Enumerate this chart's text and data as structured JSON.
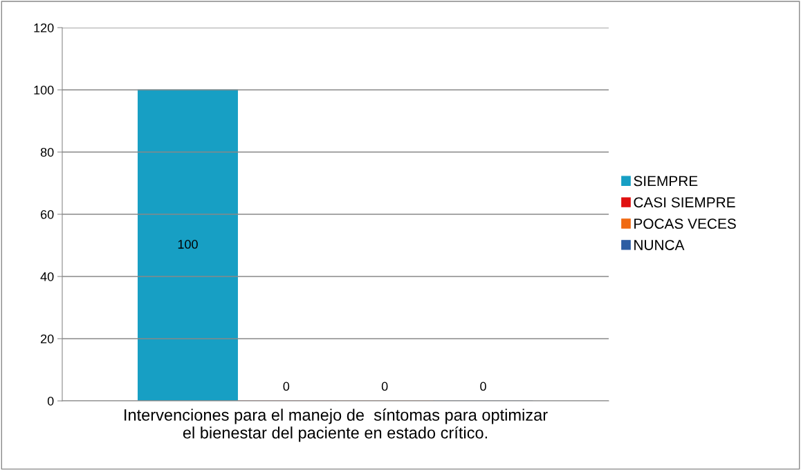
{
  "chart_data": {
    "type": "bar",
    "categories": [
      "Intervenciones para el manejo de  síntomas para optimizar\nel bienestar del paciente en estado crítico."
    ],
    "series": [
      {
        "name": "SIEMPRE",
        "color": "#179fc4",
        "values": [
          100
        ]
      },
      {
        "name": "CASI SIEMPRE",
        "color": "#e01010",
        "values": [
          0
        ]
      },
      {
        "name": "POCAS VECES",
        "color": "#f06a12",
        "values": [
          0
        ]
      },
      {
        "name": "NUNCA",
        "color": "#2c5da3",
        "values": [
          0
        ]
      }
    ],
    "ylim": [
      0,
      120
    ],
    "yticks": [
      0,
      20,
      40,
      60,
      80,
      100,
      120
    ],
    "grid": "y",
    "legend": "right",
    "data_labels": true
  }
}
